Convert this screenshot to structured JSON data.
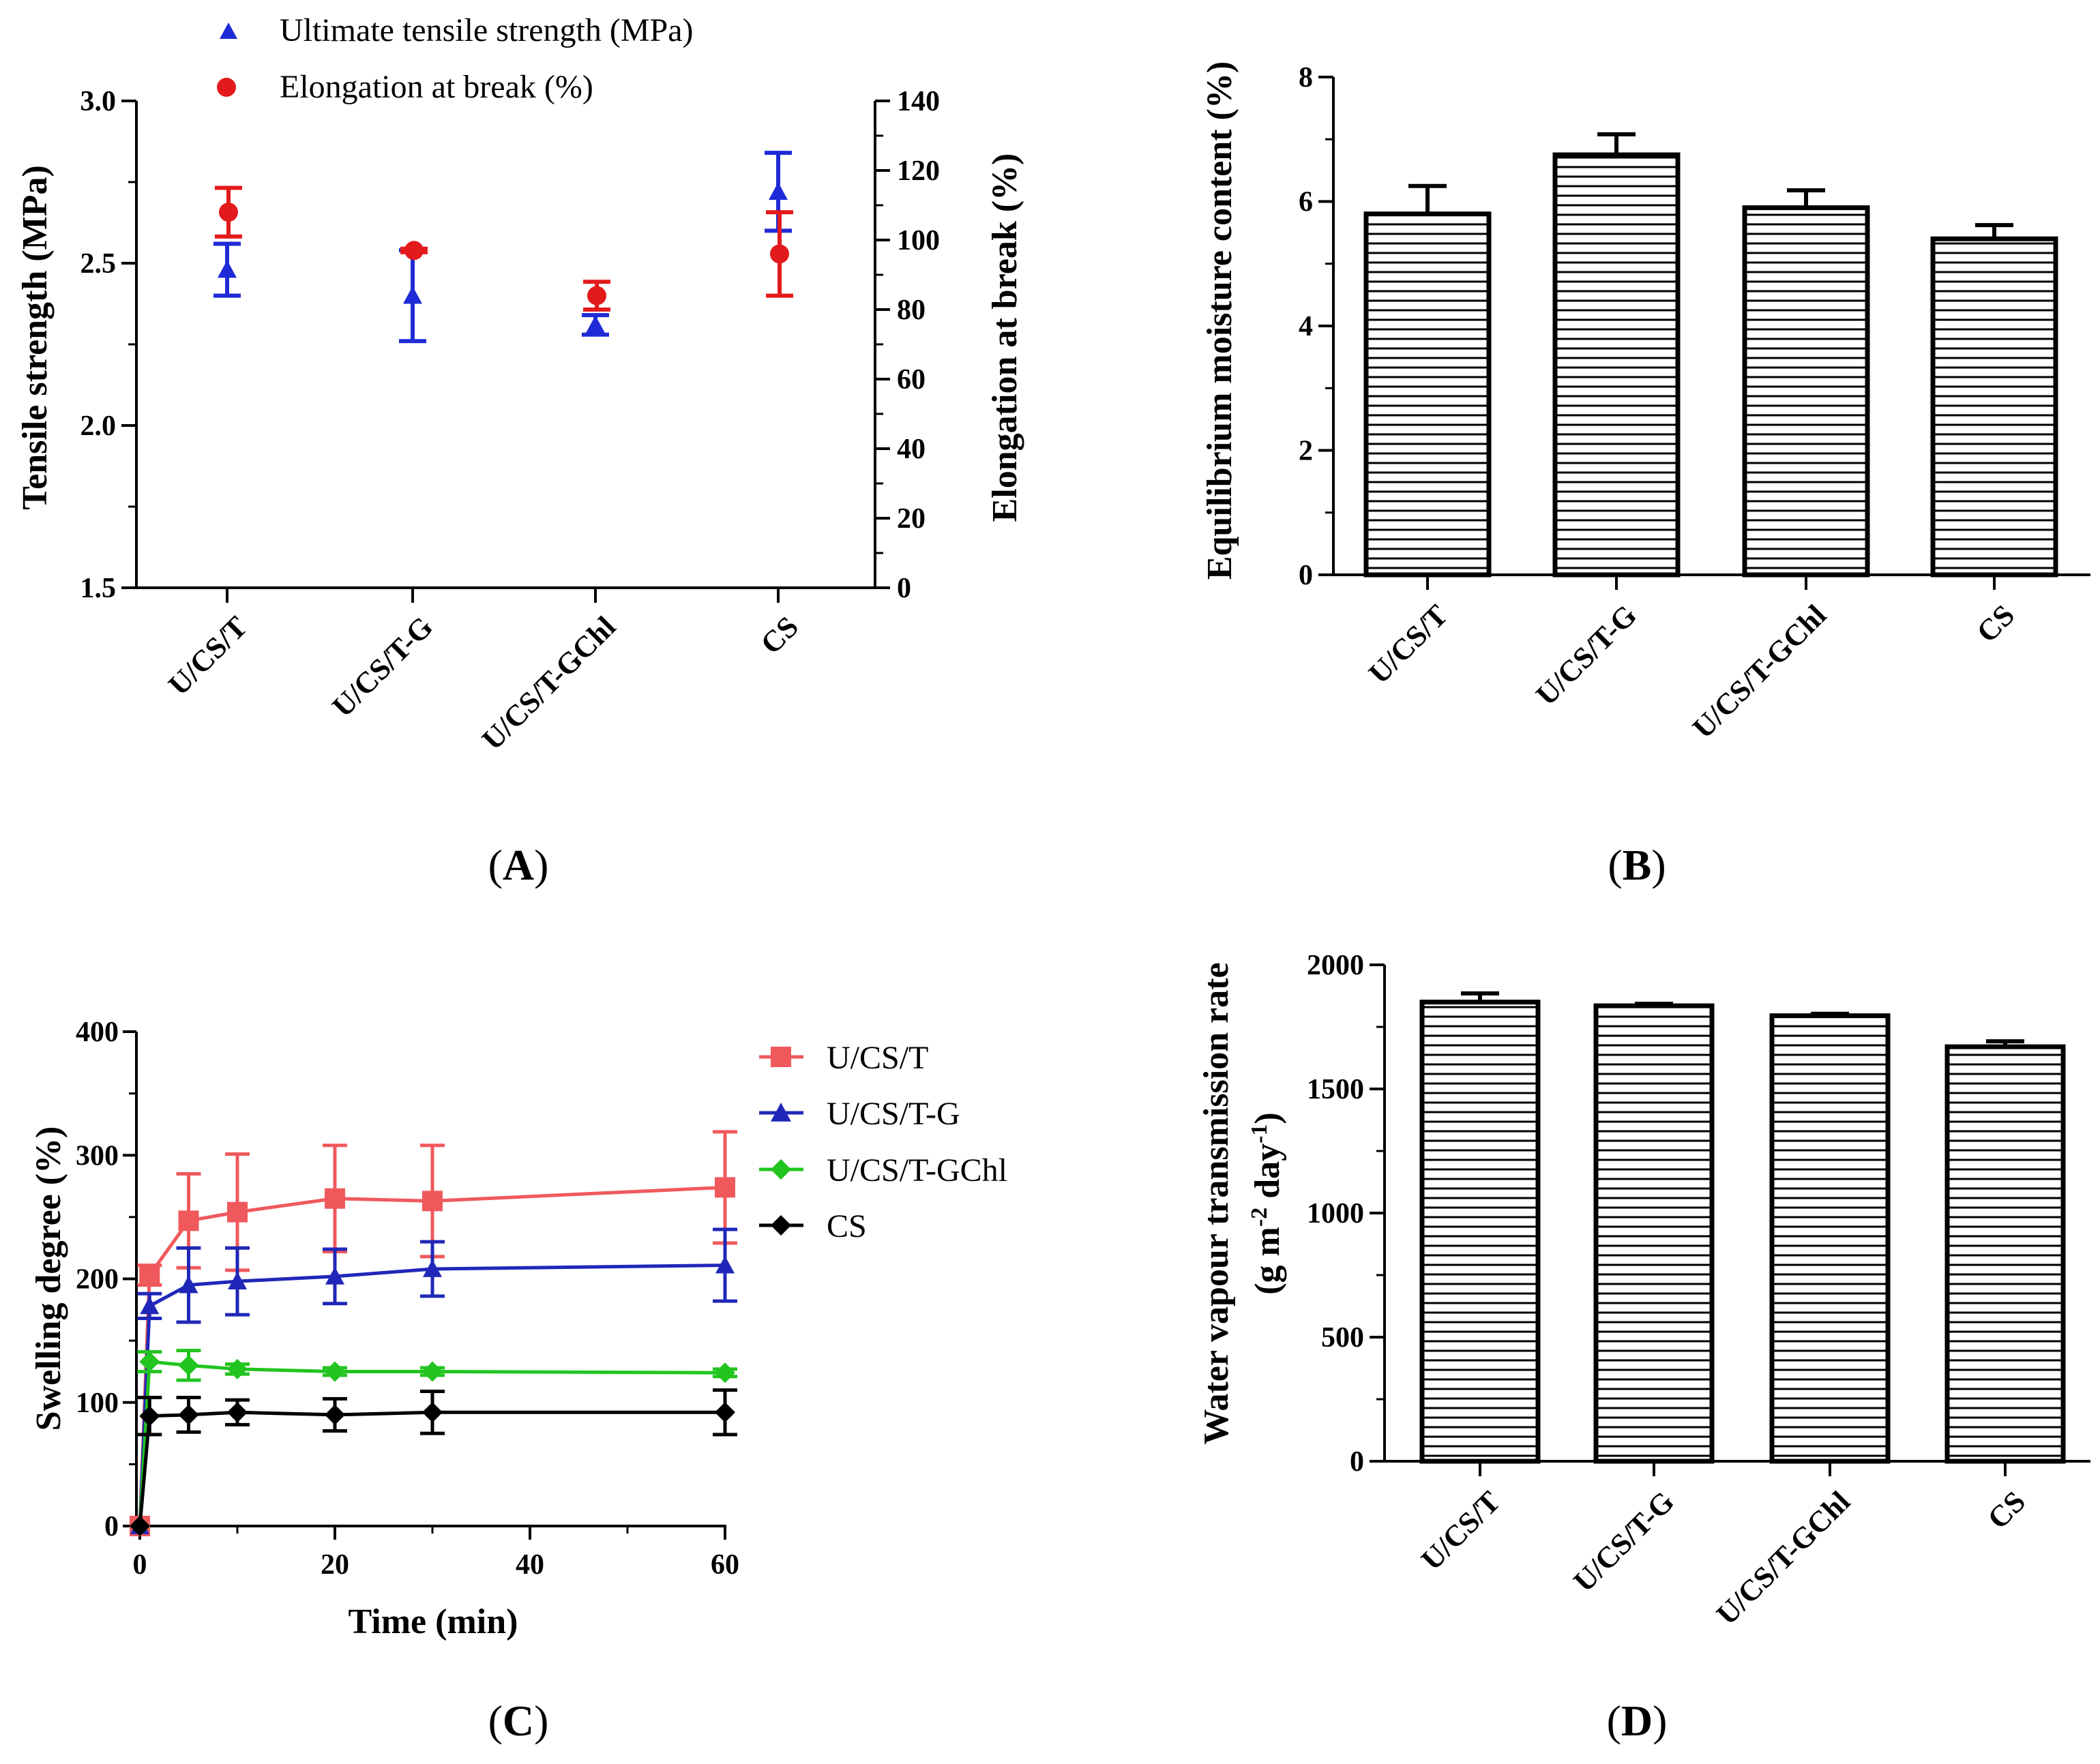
{
  "colors": {
    "red": "#e31a1c",
    "blue": "#1f2bd6",
    "lightred": "#f0595c",
    "darkblue": "#2027b8",
    "green": "#22c41f",
    "black": "#000000"
  },
  "chart_data": [
    {
      "panel": "A",
      "type": "scatter",
      "panel_label": {
        "open": "(",
        "letter": "A",
        "close": ")"
      },
      "categories": [
        "U/CS/T",
        "U/CS/T-G",
        "U/CS/T-GChl",
        "CS"
      ],
      "ylabel": "Tensile strength (MPa)",
      "y2label": "Elongation at break (%)",
      "ylim": [
        1.5,
        3.0
      ],
      "y2lim": [
        0,
        140
      ],
      "yticks": [
        "1.5",
        "2.0",
        "2.5",
        "3.0"
      ],
      "y2ticks": [
        "0",
        "20",
        "40",
        "60",
        "80",
        "100",
        "120",
        "140"
      ],
      "legend_position": "top",
      "series": [
        {
          "name": "Ultimate tensile strength (MPa)",
          "axis": "left",
          "marker": "triangle",
          "color": "#1f2bd6",
          "values": [
            2.48,
            2.4,
            2.31,
            2.72
          ],
          "errors": [
            0.08,
            0.14,
            0.03,
            0.12
          ]
        },
        {
          "name": "Elongation at break (%)",
          "axis": "right",
          "marker": "circle",
          "color": "#e31a1c",
          "values": [
            108,
            97,
            84,
            96
          ],
          "errors": [
            7,
            0.5,
            4,
            12
          ]
        }
      ]
    },
    {
      "panel": "B",
      "type": "bar",
      "panel_label": {
        "open": "(",
        "letter": "B",
        "close": ")"
      },
      "categories": [
        "U/CS/T",
        "U/CS/T-G",
        "U/CS/T-GChl",
        "CS"
      ],
      "ylabel": "Equilibrium moisture content (%)",
      "ylim": [
        0,
        8
      ],
      "yticks": [
        "0",
        "2",
        "4",
        "6",
        "8"
      ],
      "values": [
        5.8,
        6.75,
        5.9,
        5.4
      ],
      "errors": [
        0.45,
        0.33,
        0.28,
        0.22
      ]
    },
    {
      "panel": "C",
      "type": "line",
      "panel_label": {
        "open": "(",
        "letter": "C",
        "close": ")"
      },
      "xlabel": "Time (min)",
      "ylabel": "Swelling degree (%)",
      "xlim": [
        0,
        60
      ],
      "ylim": [
        0,
        400
      ],
      "xticks": [
        "0",
        "20",
        "40",
        "60"
      ],
      "yticks": [
        "0",
        "100",
        "200",
        "300",
        "400"
      ],
      "x": [
        0,
        1,
        5,
        10,
        20,
        30,
        60
      ],
      "legend_position": "right",
      "series": [
        {
          "name": "U/CS/T",
          "marker": "square",
          "color": "#f0595c",
          "values": [
            0,
            203,
            247,
            254,
            265,
            263,
            274
          ],
          "errors": [
            0,
            8,
            38,
            47,
            43,
            45,
            45
          ]
        },
        {
          "name": "U/CS/T-G",
          "marker": "triangle",
          "color": "#2027b8",
          "values": [
            0,
            178,
            195,
            198,
            202,
            208,
            211
          ],
          "errors": [
            0,
            10,
            30,
            27,
            22,
            22,
            29
          ]
        },
        {
          "name": "U/CS/T-GChl",
          "marker": "diamond",
          "color": "#22c41f",
          "values": [
            0,
            133,
            130,
            127,
            125,
            125,
            124
          ],
          "errors": [
            0,
            8,
            12,
            4,
            3,
            3,
            3
          ]
        },
        {
          "name": "CS",
          "marker": "diamond",
          "color": "#000000",
          "values": [
            0,
            89,
            90,
            92,
            90,
            92,
            92
          ],
          "errors": [
            0,
            15,
            14,
            10,
            13,
            17,
            18
          ]
        }
      ]
    },
    {
      "panel": "D",
      "type": "bar",
      "panel_label": {
        "open": "(",
        "letter": "D",
        "close": ")"
      },
      "categories": [
        "U/CS/T",
        "U/CS/T-G",
        "U/CS/T-GChl",
        "CS"
      ],
      "ylabel_line1": "Water vapour transmission rate",
      "ylabel_line2": {
        "g": "(g m",
        "exp1": "-2",
        "day": " day",
        "exp2": "-1",
        "close": ")"
      },
      "ylim": [
        0,
        2000
      ],
      "yticks": [
        "0",
        "500",
        "1000",
        "1500",
        "2000"
      ],
      "values": [
        1850,
        1835,
        1795,
        1670
      ],
      "errors": [
        35,
        8,
        8,
        22
      ]
    }
  ]
}
